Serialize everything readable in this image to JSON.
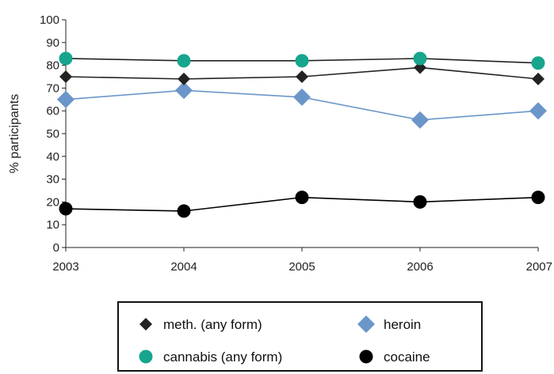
{
  "chart_data": {
    "type": "line",
    "title": "",
    "xlabel": "",
    "ylabel": "% participants",
    "x": [
      "2003",
      "2004",
      "2005",
      "2006",
      "2007"
    ],
    "ylim": [
      0,
      100
    ],
    "yticks": [
      0,
      10,
      20,
      30,
      40,
      50,
      60,
      70,
      80,
      90,
      100
    ],
    "grid": false,
    "legend_position": "bottom-center",
    "series": [
      {
        "name": "meth. (any form)",
        "marker": "diamond",
        "color": "#222222",
        "line_color": "#222222",
        "values": [
          75,
          74,
          75,
          79,
          74
        ]
      },
      {
        "name": "heroin",
        "marker": "diamond",
        "color": "#6b96c9",
        "line_color": "#6b96c9",
        "values": [
          65,
          69,
          66,
          56,
          60
        ]
      },
      {
        "name": "cannabis (any form)",
        "marker": "circle",
        "color": "#17a58e",
        "line_color": "#222222",
        "values": [
          83,
          82,
          82,
          83,
          81
        ]
      },
      {
        "name": "cocaine",
        "marker": "circle",
        "color": "#000000",
        "line_color": "#000000",
        "values": [
          17,
          16,
          22,
          20,
          22
        ]
      }
    ]
  }
}
